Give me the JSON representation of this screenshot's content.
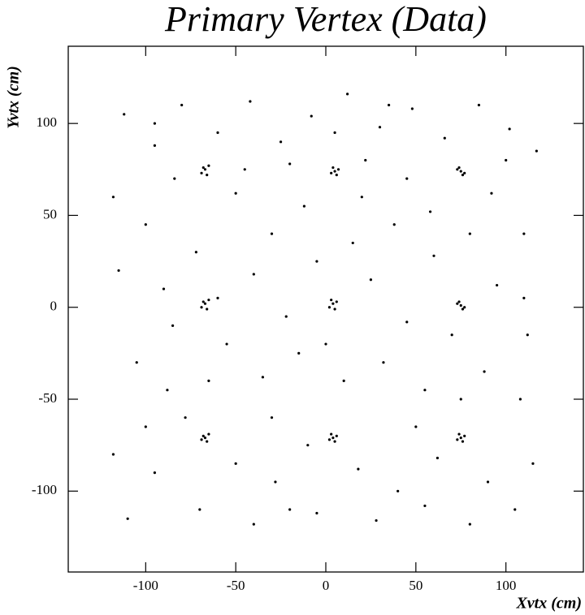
{
  "chart_data": {
    "type": "scatter",
    "title": "Primary Vertex (Data)",
    "x_label": "Xvtx (cm)",
    "y_label": "Yvtx (cm)",
    "xlim": [
      -143,
      143
    ],
    "ylim": [
      -144,
      142
    ],
    "xticks": [
      -100,
      -50,
      0,
      50,
      100
    ],
    "yticks": [
      -100,
      -50,
      0,
      50,
      100
    ],
    "color": "#000000",
    "x": [
      -112,
      -95,
      -80,
      -60,
      -42,
      -25,
      -8,
      12,
      30,
      48,
      66,
      85,
      102,
      117,
      -118,
      -100,
      -84,
      -50,
      -30,
      -12,
      20,
      38,
      58,
      92,
      110,
      -115,
      -90,
      -72,
      -40,
      -22,
      -5,
      25,
      45,
      60,
      95,
      112,
      -105,
      -88,
      -55,
      -35,
      -15,
      10,
      32,
      55,
      88,
      108,
      -118,
      -95,
      -78,
      -50,
      -28,
      -10,
      18,
      40,
      62,
      90,
      115,
      -110,
      -70,
      -40,
      -5,
      28,
      55,
      80,
      105,
      -60,
      -45,
      -20,
      22,
      50,
      -30,
      0,
      15,
      -85,
      70,
      100,
      -100,
      35,
      -65,
      5,
      80,
      -20,
      45,
      -95,
      75,
      110,
      -67,
      -69,
      -65,
      -68,
      -66,
      5,
      3,
      7,
      4,
      6,
      75,
      73,
      77,
      74,
      76,
      -67,
      -69,
      -65,
      -68,
      -66,
      4,
      2,
      6,
      3,
      5,
      75,
      73,
      77,
      74,
      76,
      -67,
      -69,
      -65,
      -68,
      -66,
      4,
      2,
      6,
      3,
      5,
      75,
      73,
      77,
      74,
      76
    ],
    "y": [
      105,
      88,
      110,
      95,
      112,
      90,
      104,
      116,
      98,
      108,
      92,
      110,
      97,
      85,
      60,
      45,
      70,
      62,
      40,
      55,
      60,
      45,
      52,
      62,
      40,
      20,
      10,
      30,
      18,
      -5,
      25,
      15,
      -8,
      28,
      12,
      -15,
      -30,
      -45,
      -20,
      -38,
      -25,
      -40,
      -30,
      -45,
      -35,
      -50,
      -80,
      -90,
      -60,
      -85,
      -95,
      -75,
      -88,
      -100,
      -82,
      -95,
      -85,
      -115,
      -110,
      -118,
      -112,
      -116,
      -108,
      -118,
      -110,
      5,
      75,
      78,
      80,
      -65,
      -60,
      -20,
      35,
      -10,
      -15,
      80,
      -65,
      110,
      -40,
      95,
      40,
      -110,
      70,
      100,
      -50,
      5,
      75,
      73,
      77,
      76,
      72,
      74,
      73,
      75,
      76,
      72,
      74,
      75,
      73,
      76,
      72,
      2,
      0,
      4,
      3,
      -1,
      2,
      0,
      3,
      4,
      -1,
      1,
      2,
      0,
      3,
      -1,
      -71,
      -72,
      -69,
      -70,
      -73,
      -71,
      -72,
      -70,
      -69,
      -73,
      -71,
      -72,
      -70,
      -69,
      -73
    ]
  }
}
